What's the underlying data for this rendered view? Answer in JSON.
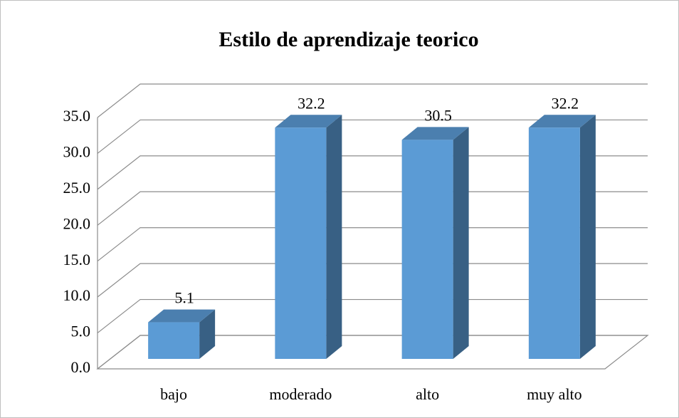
{
  "chart_data": {
    "type": "bar3d",
    "title": "Estilo de aprendizaje teorico",
    "categories": [
      "bajo",
      "moderado",
      "alto",
      "muy alto"
    ],
    "values": [
      5.1,
      32.2,
      30.5,
      32.2
    ],
    "color": "#5b9bd5",
    "ylim": [
      0,
      35
    ],
    "yticks": [
      {
        "value": 0,
        "label": "0.0"
      },
      {
        "value": 5,
        "label": "5.0"
      },
      {
        "value": 10,
        "label": "10.0"
      },
      {
        "value": 15,
        "label": "15.0"
      },
      {
        "value": 20,
        "label": "20.0"
      },
      {
        "value": 25,
        "label": "25.0"
      },
      {
        "value": 30,
        "label": "30.0"
      },
      {
        "value": 35,
        "label": "35.0"
      }
    ],
    "grid": true
  }
}
